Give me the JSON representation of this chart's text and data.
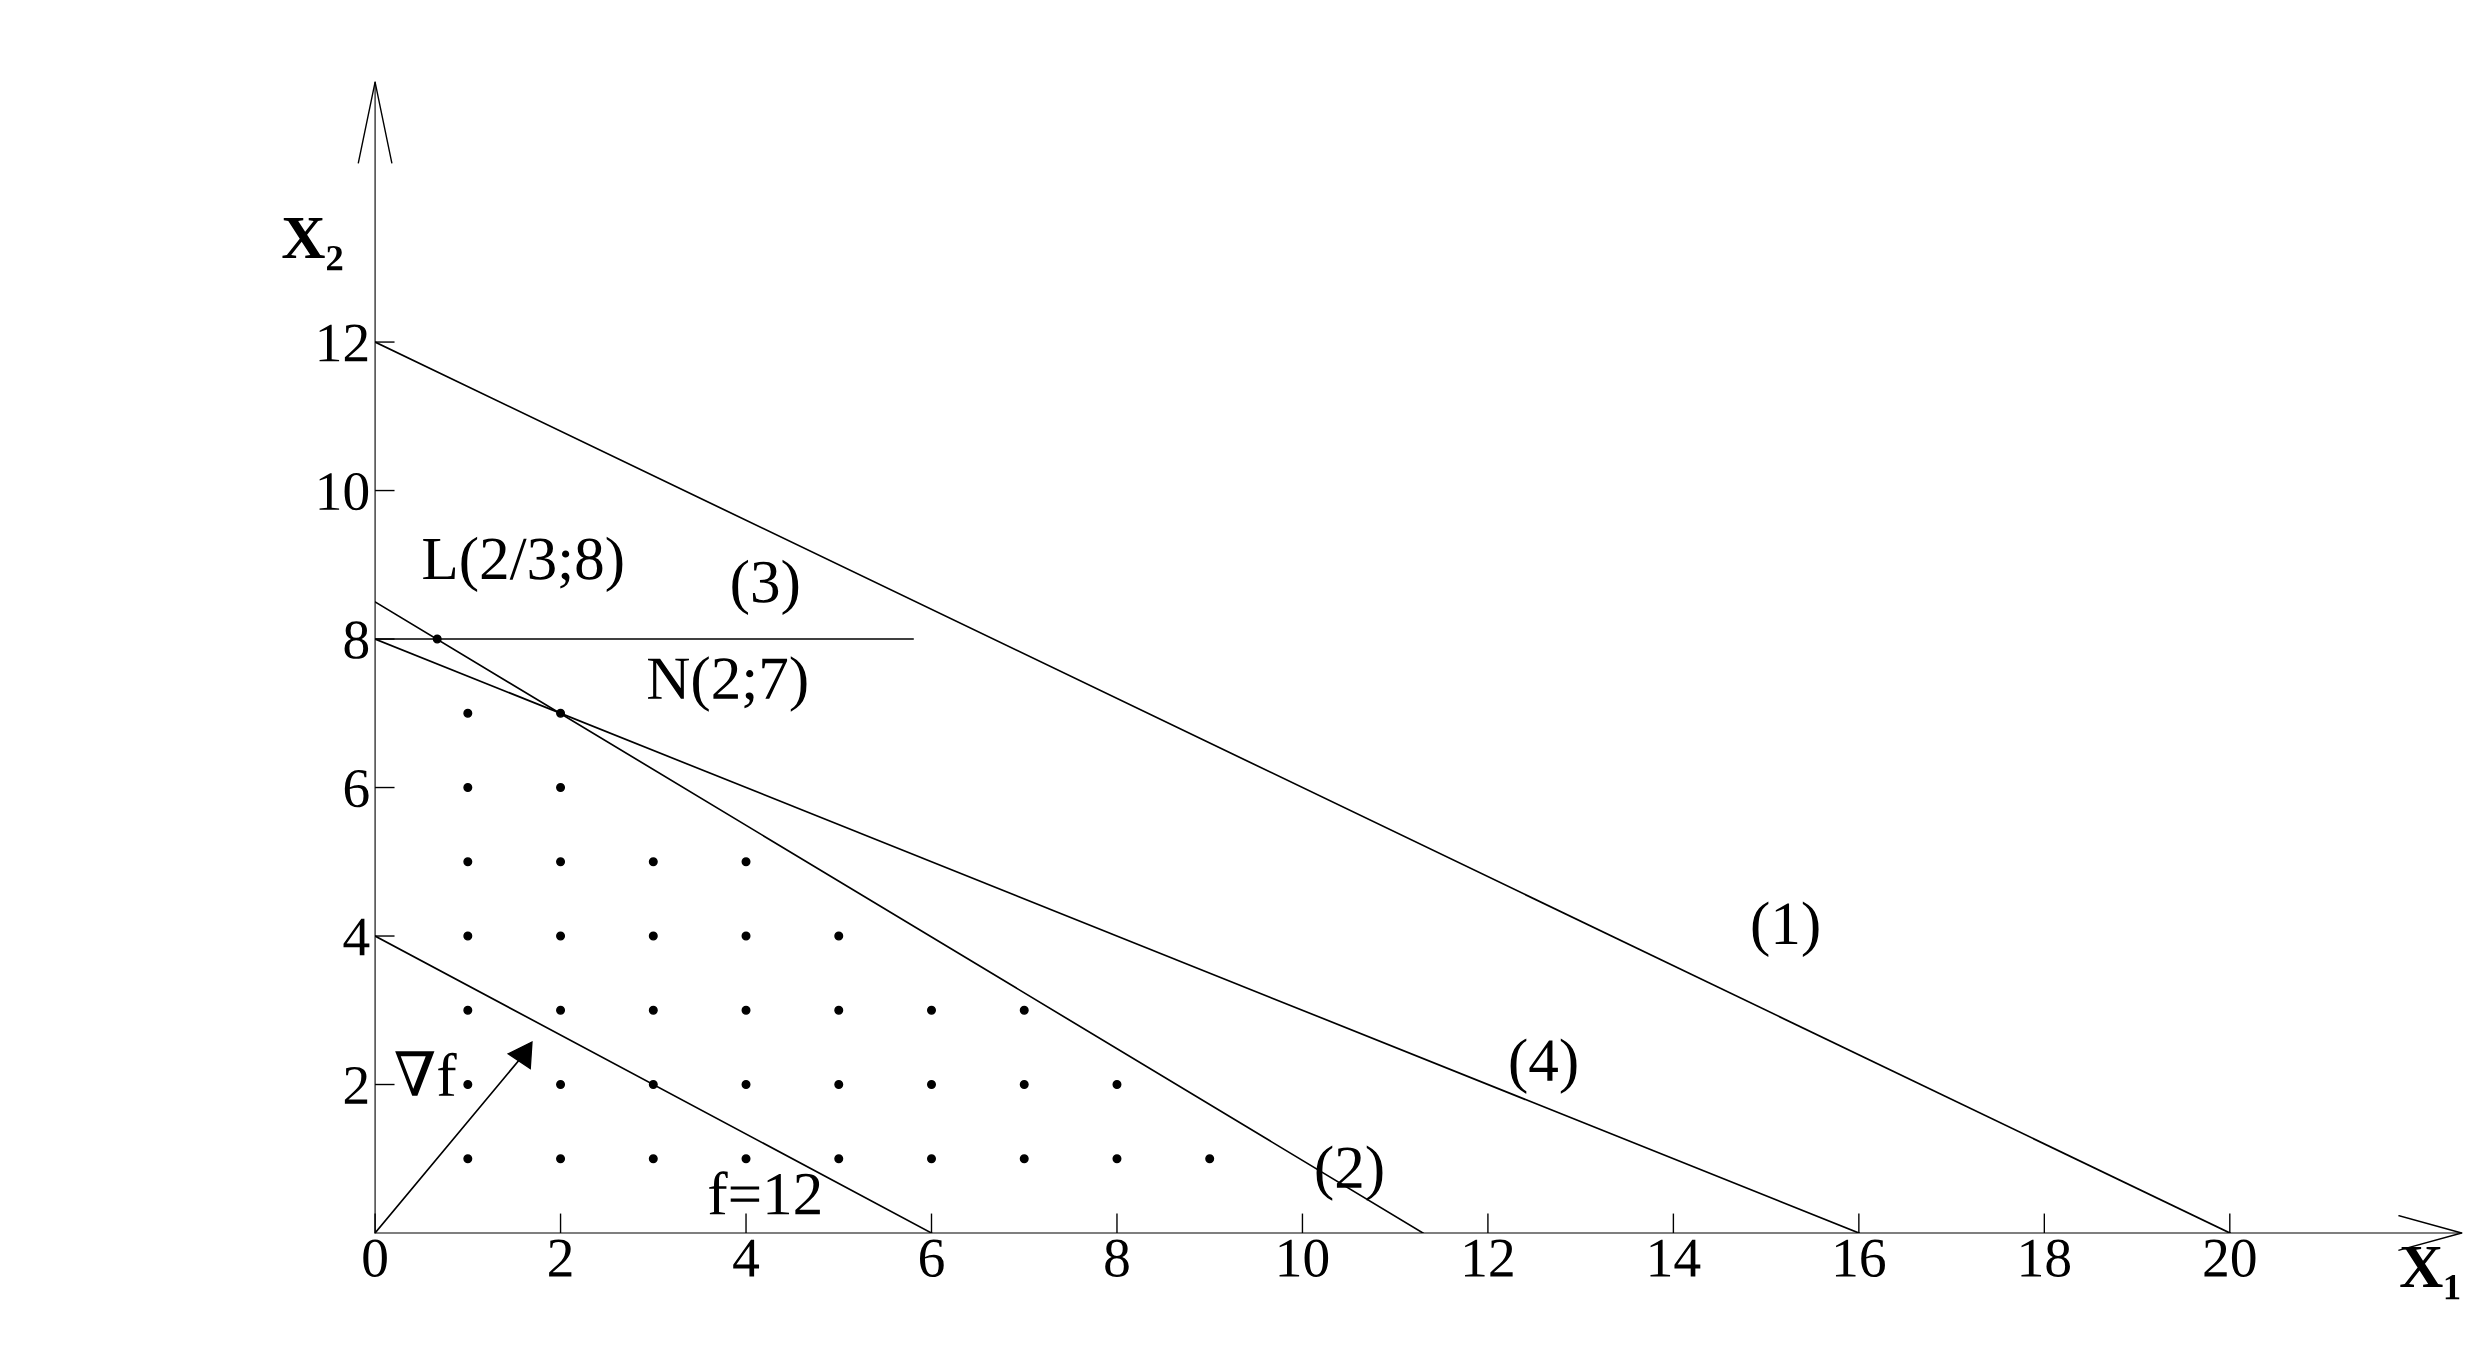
{
  "chart_data": {
    "type": "line",
    "xlabel": "X₁",
    "ylabel": "X₂",
    "xlim": [
      0,
      22.5
    ],
    "ylim": [
      0,
      15.5
    ],
    "xticks": [
      0,
      2,
      4,
      6,
      8,
      10,
      12,
      14,
      16,
      18,
      20
    ],
    "yticks": [
      2,
      4,
      6,
      8,
      10,
      12
    ],
    "grid": false,
    "legend": false,
    "series": [
      {
        "color": "#000000",
        "x": [
          0,
          20
        ],
        "values": [
          12,
          0
        ]
      },
      {
        "color": "#000000",
        "x": [
          0,
          11.3
        ],
        "values": [
          8.5,
          0
        ]
      },
      {
        "color": "#000000",
        "x": [
          0,
          5.8
        ],
        "values": [
          8,
          8
        ]
      },
      {
        "color": "#000000",
        "x": [
          0,
          16
        ],
        "values": [
          8,
          0
        ]
      },
      {
        "color": "#000000",
        "x": [
          0,
          6
        ],
        "values": [
          4,
          0
        ]
      },
      {
        "color": "#000000",
        "marker": "triangle",
        "x": [
          0,
          1.6
        ],
        "values": [
          0,
          2.4
        ]
      },
      {
        "type": "scatter",
        "color": "#000000",
        "marker": "circle",
        "x": [
          0.67,
          1,
          2,
          1,
          2,
          1,
          2,
          3,
          4,
          1,
          2,
          3,
          4,
          5,
          1,
          2,
          3,
          4,
          5,
          6,
          7,
          1,
          2,
          3,
          4,
          5,
          6,
          7,
          8,
          1,
          2,
          3,
          4,
          5,
          6,
          7,
          8,
          9
        ],
        "values": [
          8,
          7,
          7,
          6,
          6,
          5,
          5,
          5,
          5,
          4,
          4,
          4,
          4,
          4,
          3,
          3,
          3,
          3,
          3,
          3,
          3,
          2,
          2,
          2,
          2,
          2,
          2,
          2,
          2,
          1,
          1,
          1,
          1,
          1,
          1,
          1,
          1,
          1
        ]
      }
    ],
    "annotations": [
      "(1)",
      "(2)",
      "(3)",
      "(4)",
      "L(2/3;8)",
      "N(2;7)",
      "f=12",
      "∇f"
    ]
  }
}
